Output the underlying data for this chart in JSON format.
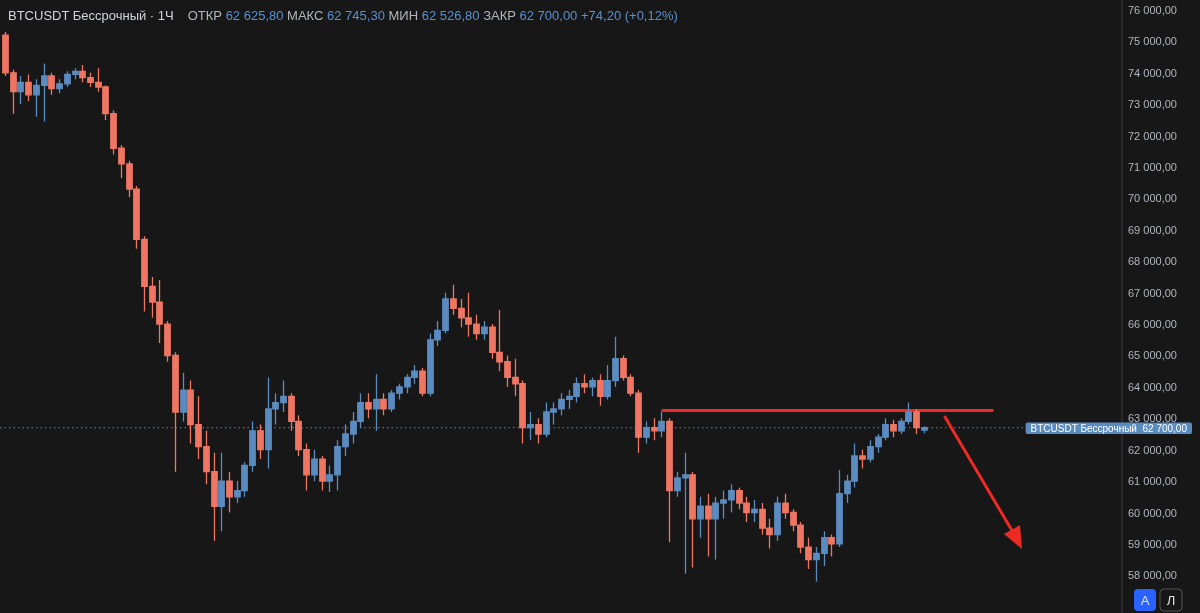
{
  "chart_data": {
    "type": "candlestick",
    "title": "BTCUSDT Бессрочный · 1Ч",
    "subtitle": "ОТКР 62 625,80 МАКС 62 745,30 МИН 62 526,80 ЗАКР 62 700,00 +74,20 (+0,12%)",
    "categories": [
      null,
      null,
      null,
      null,
      null,
      null,
      null,
      null,
      null,
      null,
      null,
      null,
      null,
      null,
      null,
      null,
      null,
      null,
      null,
      null,
      null,
      null,
      null,
      null,
      null,
      null,
      null,
      null,
      null,
      null,
      null,
      null,
      null,
      null,
      null,
      null,
      null,
      null,
      null,
      null,
      null,
      null,
      null,
      null,
      null,
      null,
      null,
      null,
      null,
      null,
      null,
      null,
      null,
      null,
      null,
      null,
      null,
      null,
      null,
      null,
      null,
      null,
      null,
      null,
      null,
      null,
      null,
      null,
      null,
      null,
      null,
      null,
      null,
      null,
      null,
      null,
      null,
      null,
      null,
      null,
      null,
      null,
      null,
      null,
      null,
      null,
      null,
      null,
      null,
      null,
      null,
      null,
      null,
      null,
      null,
      null,
      null,
      null,
      null,
      null,
      null,
      null,
      null,
      null,
      null,
      null,
      null,
      null,
      null,
      null,
      null,
      null,
      null,
      null,
      null,
      null,
      null,
      null,
      null,
      null,
      null,
      null,
      null,
      null,
      null,
      null,
      null,
      null,
      null,
      null,
      null,
      null,
      null,
      null,
      null,
      null,
      null,
      null,
      null,
      null,
      null,
      null,
      null,
      null,
      null
    ],
    "ohlc": [
      [
        75200,
        75300,
        73900,
        74000
      ],
      [
        74000,
        74100,
        72700,
        73400
      ],
      [
        73400,
        73900,
        73000,
        73700
      ],
      [
        73700,
        73950,
        73100,
        73300
      ],
      [
        73300,
        73800,
        72600,
        73600
      ],
      [
        73600,
        74300,
        72450,
        73900
      ],
      [
        73900,
        74000,
        73300,
        73500
      ],
      [
        73500,
        73800,
        73350,
        73650
      ],
      [
        73650,
        74050,
        73550,
        73950
      ],
      [
        73950,
        74150,
        73800,
        74050
      ],
      [
        74050,
        74250,
        73700,
        73850
      ],
      [
        73850,
        74000,
        73550,
        73700
      ],
      [
        73700,
        74150,
        73400,
        73550
      ],
      [
        73550,
        73600,
        72500,
        72700
      ],
      [
        72700,
        72800,
        71400,
        71600
      ],
      [
        71600,
        71700,
        70650,
        71100
      ],
      [
        71100,
        71200,
        70040,
        70300
      ],
      [
        70300,
        70400,
        68400,
        68700
      ],
      [
        68700,
        68800,
        66400,
        67200
      ],
      [
        67200,
        67500,
        66200,
        66700
      ],
      [
        66700,
        67400,
        65400,
        66000
      ],
      [
        66000,
        66100,
        64800,
        65000
      ],
      [
        65000,
        65100,
        61300,
        63200
      ],
      [
        63200,
        64450,
        62900,
        63900
      ],
      [
        63900,
        64200,
        62200,
        62800
      ],
      [
        62800,
        63700,
        61700,
        62100
      ],
      [
        62100,
        62600,
        60900,
        61300
      ],
      [
        61300,
        61900,
        59100,
        60200
      ],
      [
        60200,
        61900,
        59400,
        61000
      ],
      [
        61000,
        61300,
        60000,
        60500
      ],
      [
        60500,
        61000,
        60300,
        60700
      ],
      [
        60700,
        61600,
        60500,
        61500
      ],
      [
        61500,
        62900,
        61300,
        62600
      ],
      [
        62600,
        62800,
        61700,
        62000
      ],
      [
        62000,
        64300,
        61400,
        63300
      ],
      [
        63300,
        63800,
        62800,
        63500
      ],
      [
        63500,
        64200,
        63200,
        63700
      ],
      [
        63700,
        63800,
        62600,
        62900
      ],
      [
        62900,
        63100,
        61800,
        62000
      ],
      [
        62000,
        62200,
        60700,
        61200
      ],
      [
        61200,
        62000,
        61000,
        61700
      ],
      [
        61700,
        61800,
        60700,
        61000
      ],
      [
        61000,
        61500,
        60650,
        61200
      ],
      [
        61200,
        62300,
        60700,
        62100
      ],
      [
        62100,
        62800,
        61800,
        62500
      ],
      [
        62500,
        63200,
        62200,
        62900
      ],
      [
        62900,
        63800,
        62700,
        63500
      ],
      [
        63500,
        63800,
        63000,
        63300
      ],
      [
        63300,
        64400,
        62600,
        63600
      ],
      [
        63600,
        63800,
        63100,
        63300
      ],
      [
        63300,
        63900,
        63200,
        63800
      ],
      [
        63800,
        64100,
        63600,
        64000
      ],
      [
        64000,
        64400,
        63800,
        64300
      ],
      [
        64300,
        64700,
        64100,
        64500
      ],
      [
        64500,
        64600,
        63700,
        63800
      ],
      [
        63800,
        65700,
        63700,
        65500
      ],
      [
        65500,
        66100,
        65300,
        65800
      ],
      [
        65800,
        67000,
        65700,
        66800
      ],
      [
        66800,
        67250,
        66300,
        66500
      ],
      [
        66500,
        66800,
        65900,
        66200
      ],
      [
        66200,
        67000,
        65600,
        66000
      ],
      [
        66000,
        66300,
        65500,
        65700
      ],
      [
        65700,
        66100,
        65500,
        65900
      ],
      [
        65900,
        66000,
        64900,
        65100
      ],
      [
        65100,
        66450,
        64500,
        64800
      ],
      [
        64800,
        65000,
        64000,
        64300
      ],
      [
        64300,
        64900,
        63700,
        64100
      ],
      [
        64100,
        64200,
        62200,
        62700
      ],
      [
        62700,
        63200,
        62300,
        62800
      ],
      [
        62800,
        63000,
        62200,
        62500
      ],
      [
        62500,
        63500,
        62400,
        63200
      ],
      [
        63200,
        63500,
        62800,
        63300
      ],
      [
        63300,
        63800,
        63100,
        63600
      ],
      [
        63600,
        63900,
        63300,
        63700
      ],
      [
        63700,
        64300,
        63500,
        64100
      ],
      [
        64100,
        64400,
        63800,
        64000
      ],
      [
        64000,
        64300,
        63700,
        64200
      ],
      [
        64200,
        64400,
        63400,
        63700
      ],
      [
        63700,
        64700,
        63600,
        64200
      ],
      [
        64200,
        65600,
        64000,
        64900
      ],
      [
        64900,
        65000,
        64200,
        64300
      ],
      [
        64300,
        64400,
        63700,
        63800
      ],
      [
        63800,
        63900,
        61900,
        62400
      ],
      [
        62400,
        62900,
        62200,
        62700
      ],
      [
        62700,
        63000,
        62300,
        62600
      ],
      [
        62600,
        63200,
        62400,
        62900
      ],
      [
        62900,
        63000,
        59050,
        60700
      ],
      [
        60700,
        61300,
        60500,
        61100
      ],
      [
        61100,
        61900,
        58050,
        61200
      ],
      [
        61200,
        61300,
        58250,
        59800
      ],
      [
        59800,
        60500,
        59200,
        60200
      ],
      [
        60200,
        60600,
        58600,
        59800
      ],
      [
        59800,
        60500,
        58500,
        60300
      ],
      [
        60300,
        60700,
        59800,
        60400
      ],
      [
        60400,
        60900,
        60000,
        60700
      ],
      [
        60700,
        60800,
        60100,
        60300
      ],
      [
        60300,
        60500,
        59700,
        60000
      ],
      [
        60000,
        60400,
        59700,
        60100
      ],
      [
        60100,
        60300,
        59300,
        59500
      ],
      [
        59500,
        59800,
        58850,
        59300
      ],
      [
        59300,
        60500,
        59100,
        60300
      ],
      [
        60300,
        60600,
        59800,
        60000
      ],
      [
        60000,
        60100,
        59400,
        59600
      ],
      [
        59600,
        59700,
        58700,
        58900
      ],
      [
        58900,
        59200,
        58200,
        58500
      ],
      [
        58500,
        58900,
        57800,
        58700
      ],
      [
        58700,
        59400,
        58300,
        59200
      ],
      [
        59200,
        59300,
        58600,
        59000
      ],
      [
        59000,
        61350,
        58900,
        60600
      ],
      [
        60600,
        61200,
        60300,
        61000
      ],
      [
        61000,
        62200,
        60800,
        61800
      ],
      [
        61800,
        62000,
        61400,
        61700
      ],
      [
        61700,
        62300,
        61600,
        62100
      ],
      [
        62100,
        62500,
        61900,
        62400
      ],
      [
        62400,
        63000,
        62300,
        62800
      ],
      [
        62800,
        62950,
        62400,
        62600
      ],
      [
        62600,
        63000,
        62500,
        62900
      ],
      [
        62900,
        63500,
        62800,
        63200
      ],
      [
        63200,
        63300,
        62500,
        62700
      ],
      [
        62625.8,
        62745.3,
        62526.8,
        62700
      ],
      null,
      null,
      null,
      null,
      null,
      null,
      null,
      null,
      null,
      null,
      null,
      null,
      null,
      null,
      null,
      null,
      null,
      null,
      null,
      null,
      null,
      null,
      null,
      null,
      null
    ],
    "colors": [
      "#ef7663",
      "#ef7663",
      "#5b8cc0",
      "#ef7663",
      "#5b8cc0",
      "#5b8cc0",
      "#ef7663",
      "#5b8cc0",
      "#5b8cc0",
      "#5b8cc0",
      "#ef7663",
      "#ef7663",
      "#ef7663",
      "#ef7663",
      "#ef7663",
      "#ef7663",
      "#ef7663",
      "#ef7663",
      "#ef7663",
      "#ef7663",
      "#ef7663",
      "#ef7663",
      "#ef7663",
      "#5b8cc0",
      "#ef7663",
      "#ef7663",
      "#ef7663",
      "#ef7663",
      "#5b8cc0",
      "#ef7663",
      "#5b8cc0",
      "#5b8cc0",
      "#5b8cc0",
      "#ef7663",
      "#5b8cc0",
      "#5b8cc0",
      "#5b8cc0",
      "#ef7663",
      "#ef7663",
      "#ef7663",
      "#5b8cc0",
      "#ef7663",
      "#5b8cc0",
      "#5b8cc0",
      "#5b8cc0",
      "#5b8cc0",
      "#5b8cc0",
      "#ef7663",
      "#5b8cc0",
      "#ef7663",
      "#5b8cc0",
      "#5b8cc0",
      "#5b8cc0",
      "#5b8cc0",
      "#ef7663",
      "#5b8cc0",
      "#5b8cc0",
      "#5b8cc0",
      "#ef7663",
      "#ef7663",
      "#ef7663",
      "#ef7663",
      "#5b8cc0",
      "#ef7663",
      "#ef7663",
      "#ef7663",
      "#ef7663",
      "#ef7663",
      "#5b8cc0",
      "#ef7663",
      "#5b8cc0",
      "#5b8cc0",
      "#5b8cc0",
      "#5b8cc0",
      "#5b8cc0",
      "#ef7663",
      "#5b8cc0",
      "#ef7663",
      "#5b8cc0",
      "#5b8cc0",
      "#ef7663",
      "#ef7663",
      "#ef7663",
      "#5b8cc0",
      "#ef7663",
      "#5b8cc0",
      "#ef7663",
      "#5b8cc0",
      "#5b8cc0",
      "#ef7663",
      "#5b8cc0",
      "#ef7663",
      "#5b8cc0",
      "#5b8cc0",
      "#5b8cc0",
      "#ef7663",
      "#ef7663",
      "#5b8cc0",
      "#ef7663",
      "#ef7663",
      "#5b8cc0",
      "#ef7663",
      "#ef7663",
      "#ef7663",
      "#ef7663",
      "#5b8cc0",
      "#5b8cc0",
      "#ef7663",
      "#5b8cc0",
      "#5b8cc0",
      "#5b8cc0",
      "#ef7663",
      "#5b8cc0",
      "#5b8cc0",
      "#5b8cc0",
      "#ef7663",
      "#5b8cc0",
      "#5b8cc0",
      "#ef7663",
      "#5b8cc0",
      null,
      null,
      null,
      null,
      null,
      null,
      null,
      null,
      null,
      null,
      null,
      null,
      null,
      null,
      null,
      null,
      null,
      null,
      null,
      null,
      null,
      null,
      null,
      null,
      null
    ],
    "series": [
      {
        "type": "line",
        "color": "#ee2a24",
        "values": [
          null,
          null,
          null,
          null,
          null,
          null,
          null,
          null,
          null,
          null,
          null,
          null,
          null,
          null,
          null,
          null,
          null,
          null,
          null,
          null,
          null,
          null,
          null,
          null,
          null,
          null,
          null,
          null,
          null,
          null,
          null,
          null,
          null,
          null,
          null,
          null,
          null,
          null,
          null,
          null,
          null,
          null,
          null,
          null,
          null,
          null,
          null,
          null,
          null,
          null,
          null,
          null,
          null,
          null,
          null,
          null,
          null,
          null,
          null,
          null,
          null,
          null,
          null,
          null,
          null,
          null,
          null,
          null,
          null,
          null,
          null,
          null,
          null,
          null,
          null,
          null,
          null,
          null,
          null,
          null,
          null,
          null,
          null,
          null,
          null,
          63250,
          63250,
          63250,
          63250,
          63250,
          63250,
          63250,
          63250,
          63250,
          63250,
          63250,
          63250,
          63250,
          63250,
          63250,
          63250,
          63250,
          63250,
          63250,
          63250,
          63250,
          63250,
          63250,
          63250,
          63250,
          63250,
          63250,
          63250,
          63250,
          63250,
          63250,
          63250,
          63250,
          63250,
          63250,
          63250,
          63250,
          63250,
          63250,
          63250,
          63250,
          63250,
          63250,
          63250,
          null,
          null,
          null,
          null,
          null,
          null,
          null,
          null,
          null,
          null,
          null,
          null,
          null,
          null,
          null,
          null
        ]
      }
    ],
    "ylim": [
      56800,
      76320
    ],
    "yticks": [
      {
        "value": 58000,
        "label": "58 000,00"
      },
      {
        "value": 59000,
        "label": "59 000,00"
      },
      {
        "value": 60000,
        "label": "60 000,00"
      },
      {
        "value": 61000,
        "label": "61 000,00"
      },
      {
        "value": 62000,
        "label": "62 000,00"
      },
      {
        "value": 63000,
        "label": "63 000,00"
      },
      {
        "value": 64000,
        "label": "64 000,00"
      },
      {
        "value": 65000,
        "label": "65 000,00"
      },
      {
        "value": 66000,
        "label": "66 000,00"
      },
      {
        "value": 67000,
        "label": "67 000,00"
      },
      {
        "value": 68000,
        "label": "68 000,00"
      },
      {
        "value": 69000,
        "label": "69 000,00"
      },
      {
        "value": 70000,
        "label": "70 000,00"
      },
      {
        "value": 71000,
        "label": "71 000,00"
      },
      {
        "value": 72000,
        "label": "72 000,00"
      },
      {
        "value": 73000,
        "label": "73 000,00"
      },
      {
        "value": 74000,
        "label": "74 000,00"
      },
      {
        "value": 75000,
        "label": "75 000,00"
      },
      {
        "value": 76000,
        "label": "76 000,00"
      }
    ],
    "ref_lines": [
      {
        "axis": "y",
        "value": 62700,
        "label": "BTCUSDT Бессрочный  62 700,00",
        "line_style": "dotted",
        "color": "#5b8cc0"
      }
    ],
    "annotations": [
      "А",
      "Л"
    ],
    "tick_labels": "y"
  }
}
